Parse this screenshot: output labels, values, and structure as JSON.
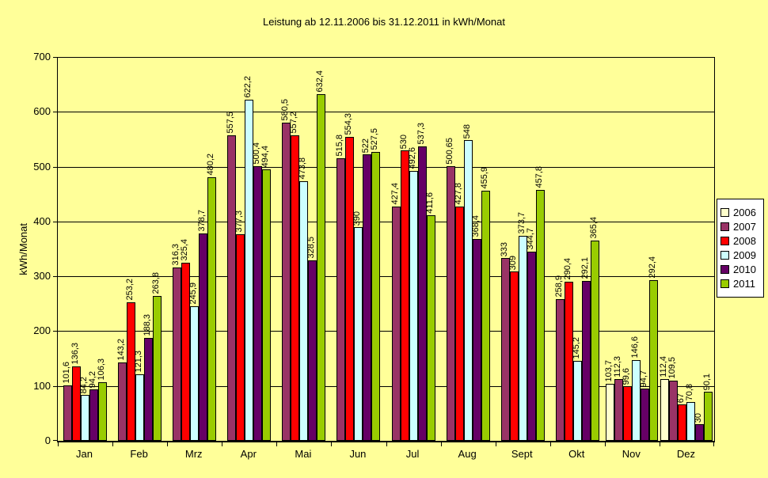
{
  "chart_data": {
    "type": "bar",
    "title": "Leistung ab 12.11.2006 bis 31.12.2011 in kWh/Monat",
    "xlabel": "",
    "ylabel": "kWh/Monat",
    "ylim": [
      0,
      700
    ],
    "yticks": [
      0,
      100,
      200,
      300,
      400,
      500,
      600,
      700
    ],
    "grid": true,
    "legend_position": "right",
    "background_color": "#FFFF99",
    "plot_border_color": "#000000",
    "categories": [
      "Jan",
      "Feb",
      "Mrz",
      "Apr",
      "Mai",
      "Jun",
      "Jul",
      "Aug",
      "Sept",
      "Okt",
      "Nov",
      "Dez"
    ],
    "series": [
      {
        "name": "2006",
        "color": "#FFFFCC",
        "values": [
          null,
          null,
          null,
          null,
          null,
          null,
          null,
          null,
          null,
          null,
          103.7,
          112.4
        ],
        "labels": [
          null,
          null,
          null,
          null,
          null,
          null,
          null,
          null,
          null,
          null,
          "103,7",
          "112,4"
        ]
      },
      {
        "name": "2007",
        "color": "#993366",
        "values": [
          101.6,
          143.2,
          316.3,
          557.5,
          580.5,
          515.8,
          427.4,
          500.65,
          333,
          258.9,
          112.3,
          109.5
        ],
        "labels": [
          "101,6",
          "143,2",
          "316,3",
          "557,5",
          "580,5",
          "515,8",
          "427,4",
          "500,65",
          "333",
          "258,9",
          "112,3",
          "109,5"
        ]
      },
      {
        "name": "2008",
        "color": "#FF0000",
        "values": [
          136.3,
          253.2,
          325.4,
          377.3,
          557.2,
          554.3,
          530,
          427.8,
          309,
          290.4,
          99.6,
          67
        ],
        "labels": [
          "136,3",
          "253,2",
          "325,4",
          "377,3",
          "557,2",
          "554,3",
          "530",
          "427,8",
          "309",
          "290,4",
          "99,6",
          "67"
        ]
      },
      {
        "name": "2009",
        "color": "#CCFFFF",
        "values": [
          84.2,
          121.3,
          245.9,
          622.2,
          473.8,
          390,
          492.6,
          548,
          373.7,
          145.2,
          146.6,
          70.8
        ],
        "labels": [
          "84,2",
          "121,3",
          "245,9",
          "622,2",
          "473,8",
          "390",
          "492,6",
          "548",
          "373,7",
          "145,2",
          "146,6",
          "70,8"
        ]
      },
      {
        "name": "2010",
        "color": "#660066",
        "values": [
          94.2,
          188.3,
          378.7,
          500.4,
          328.5,
          522,
          537.3,
          368.4,
          344.7,
          292.1,
          94.7,
          30
        ],
        "labels": [
          "94,2",
          "188,3",
          "378,7",
          "500,4",
          "328,5",
          "522",
          "537,3",
          "368,4",
          "344,7",
          "292,1",
          "94,7",
          "30"
        ]
      },
      {
        "name": "2011",
        "color": "#99CC00",
        "values": [
          106.3,
          263.8,
          480.2,
          494.4,
          632.4,
          527.5,
          411.6,
          455.9,
          457.8,
          365.4,
          292.4,
          90.1
        ],
        "labels": [
          "106,3",
          "263,8",
          "480,2",
          "494,4",
          "632,4",
          "527,5",
          "411,6",
          "455,9",
          "457,8",
          "365,4",
          "292,4",
          "90,1"
        ]
      }
    ]
  }
}
